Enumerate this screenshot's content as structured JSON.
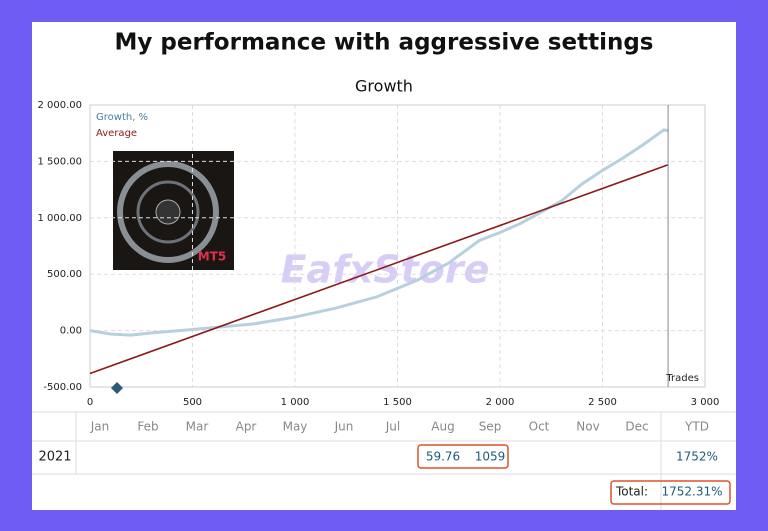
{
  "chart_data": {
    "type": "line",
    "title": "My performance with aggressive settings",
    "subtitle": "Growth",
    "x_label": "Trades",
    "image_label": "MT5",
    "watermark": "EafxStore",
    "xlim": [
      0,
      3000
    ],
    "xticks": [
      0,
      500,
      {
        "value": 1000,
        "label": "1 000"
      },
      {
        "value": 1500,
        "label": "1 500"
      },
      {
        "value": 2000,
        "label": "2 000"
      },
      {
        "value": 2500,
        "label": "2 500"
      },
      {
        "value": 3000,
        "label": "3 000"
      }
    ],
    "ylim": [
      -500,
      2000
    ],
    "yticks": [
      {
        "value": -500,
        "label": "-500.00"
      },
      {
        "value": 0,
        "label": "0.00"
      },
      {
        "value": 500,
        "label": "500.00"
      },
      {
        "value": 1000,
        "label": "1 000.00"
      },
      {
        "value": 1500,
        "label": "1 500.00"
      },
      {
        "value": 2000,
        "label": "2 000.00"
      }
    ],
    "grid": true,
    "series": [
      {
        "name": "Growth, %",
        "color": "#b7d0df",
        "x": [
          0,
          100,
          200,
          300,
          500,
          800,
          1000,
          1200,
          1400,
          1600,
          1750,
          1900,
          2000,
          2100,
          2200,
          2300,
          2400,
          2500,
          2600,
          2700,
          2800,
          2820
        ],
        "values": [
          0,
          -30,
          -40,
          -20,
          10,
          60,
          120,
          200,
          300,
          450,
          600,
          800,
          870,
          950,
          1050,
          1150,
          1300,
          1420,
          1530,
          1650,
          1780,
          1770
        ]
      },
      {
        "name": "Average",
        "color": "#8b1a1a",
        "x": [
          0,
          2820
        ],
        "values": [
          -380,
          1470
        ]
      }
    ]
  },
  "table": {
    "columns": [
      "Jan",
      "Feb",
      "Mar",
      "Apr",
      "May",
      "Jun",
      "Jul",
      "Aug",
      "Sep",
      "Oct",
      "Nov",
      "Dec",
      "YTD"
    ],
    "row": {
      "year": "2021",
      "cells": [
        null,
        null,
        null,
        null,
        null,
        null,
        null,
        "59.76",
        "1059",
        null,
        null,
        null,
        "1752%"
      ]
    },
    "total_label": "Total:",
    "total": "1752.31%"
  }
}
